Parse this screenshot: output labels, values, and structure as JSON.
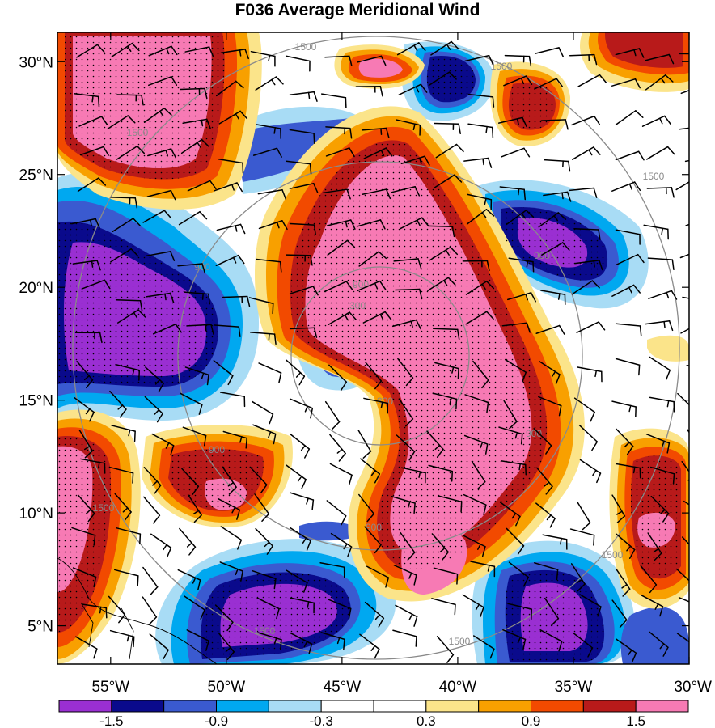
{
  "title": "F036 Average Meridional Wind",
  "chart_data": {
    "type": "heatmap",
    "map": "filled contour map of average meridional wind with wind barbs and circular gray contours",
    "title": "F036 Average Meridional Wind",
    "x_ticks": [
      "55°W",
      "50°W",
      "45°W",
      "40°W",
      "35°W",
      "30°W"
    ],
    "x_tick_values": [
      -55,
      -50,
      -45,
      -40,
      -35,
      -30
    ],
    "y_ticks": [
      "30°N",
      "25°N",
      "20°N",
      "15°N",
      "10°N",
      "5°N"
    ],
    "y_tick_values": [
      30,
      25,
      20,
      15,
      10,
      5
    ],
    "xlim": [
      -57.3,
      -30
    ],
    "ylim": [
      3.3,
      31.3
    ],
    "colorbar": {
      "colors": [
        "#9a2fd2",
        "#0a0a8c",
        "#3a5ad0",
        "#00a8f0",
        "#a8dcf5",
        "#ffffff",
        "#ffffff",
        "#fbe48a",
        "#f8a000",
        "#f24a00",
        "#b81a1a",
        "#f77ab4"
      ],
      "levels": [
        -1.5,
        -1.2,
        -0.9,
        -0.6,
        -0.3,
        0,
        0.3,
        0.6,
        0.9,
        1.2,
        1.5
      ],
      "labels": [
        "-1.5",
        "-0.9",
        "-0.3",
        "0.3",
        "0.9",
        "1.5"
      ]
    },
    "contour_labels": [
      "1500",
      "1500",
      "1500",
      "1500",
      "1500",
      "1500",
      "900",
      "900",
      "900",
      "900",
      "300",
      "300",
      "900",
      "1500",
      "900",
      "1500"
    ],
    "stipple": "dots over regions with |value| >= 0.9",
    "colors": {
      "frame": "#000000",
      "contour": "#8a8a8a",
      "barb": "#000000",
      "coastline": "#000000"
    }
  }
}
